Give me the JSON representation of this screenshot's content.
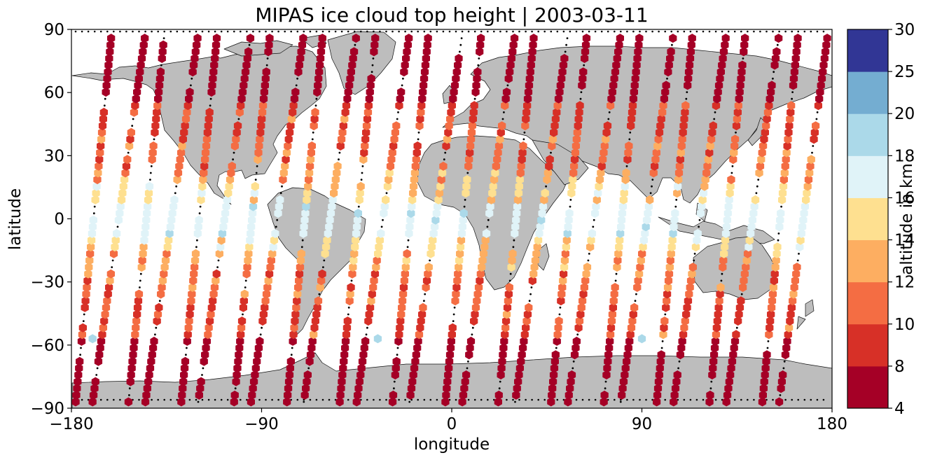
{
  "chart_data": {
    "type": "scatter",
    "title": "MIPAS ice cloud top height | 2003-03-11",
    "xlabel": "longitude",
    "ylabel": "latitude",
    "xlim": [
      -180,
      180
    ],
    "ylim": [
      -90,
      90
    ],
    "xticks": [
      -180,
      -90,
      0,
      90,
      180
    ],
    "yticks": [
      -90,
      -60,
      -30,
      0,
      30,
      60,
      90
    ],
    "grid": false,
    "background": "world map, land in grey (#bdbdbd) with black coastlines and borders",
    "marker": "hexagon",
    "colorbar": {
      "label": "altitude in km",
      "boundaries": [
        4,
        8,
        10,
        12,
        14,
        16,
        18,
        20,
        25,
        30
      ],
      "ticks": [
        "4",
        "8",
        "10",
        "12",
        "14",
        "16",
        "18",
        "20",
        "25",
        "30"
      ],
      "colors": [
        "#a50026",
        "#d73027",
        "#f46d43",
        "#fdae61",
        "#fee090",
        "#e0f3f8",
        "#abd9e9",
        "#74add1",
        "#313695"
      ]
    },
    "orbit_tracks": [
      {
        "ascending": false,
        "lon_north": -161,
        "lon_south": -178
      },
      {
        "ascending": true,
        "lon_south": -170,
        "lon_north": -145
      },
      {
        "ascending": false,
        "lon_north": -136,
        "lon_south": -153
      },
      {
        "ascending": true,
        "lon_south": -145,
        "lon_north": -120
      },
      {
        "ascending": false,
        "lon_north": -111,
        "lon_south": -128
      },
      {
        "ascending": true,
        "lon_south": -120,
        "lon_north": -95
      },
      {
        "ascending": false,
        "lon_north": -86,
        "lon_south": -103
      },
      {
        "ascending": true,
        "lon_south": -95,
        "lon_north": -70
      },
      {
        "ascending": false,
        "lon_north": -61,
        "lon_south": -78
      },
      {
        "ascending": true,
        "lon_south": -70,
        "lon_north": -45
      },
      {
        "ascending": false,
        "lon_north": -36,
        "lon_south": -53
      },
      {
        "ascending": true,
        "lon_south": -45,
        "lon_north": -20
      },
      {
        "ascending": false,
        "lon_north": -11,
        "lon_south": -28
      },
      {
        "ascending": true,
        "lon_south": -20,
        "lon_north": 5
      },
      {
        "ascending": false,
        "lon_north": 14,
        "lon_south": -3
      },
      {
        "ascending": true,
        "lon_south": 5,
        "lon_north": 30
      },
      {
        "ascending": false,
        "lon_north": 39,
        "lon_south": 22
      },
      {
        "ascending": true,
        "lon_south": 30,
        "lon_north": 55
      },
      {
        "ascending": false,
        "lon_north": 64,
        "lon_south": 47
      },
      {
        "ascending": true,
        "lon_south": 55,
        "lon_north": 80
      },
      {
        "ascending": false,
        "lon_north": 89,
        "lon_south": 72
      },
      {
        "ascending": true,
        "lon_south": 80,
        "lon_north": 105
      },
      {
        "ascending": false,
        "lon_north": 114,
        "lon_south": 97
      },
      {
        "ascending": true,
        "lon_south": 105,
        "lon_north": 130
      },
      {
        "ascending": false,
        "lon_north": 139,
        "lon_south": 122
      },
      {
        "ascending": true,
        "lon_south": 130,
        "lon_north": 155
      },
      {
        "ascending": false,
        "lon_north": 164,
        "lon_south": 147
      },
      {
        "ascending": true,
        "lon_south": 155,
        "lon_north": 178
      }
    ],
    "isolated_points": [
      {
        "lon": -170,
        "lat": -57,
        "altitude_km": 19
      },
      {
        "lon": -35,
        "lat": -57,
        "altitude_km": 19
      },
      {
        "lon": 90,
        "lat": -57,
        "altitude_km": 19
      }
    ]
  }
}
